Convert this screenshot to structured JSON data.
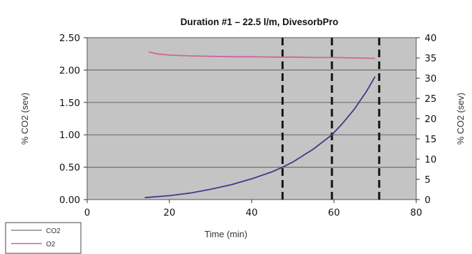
{
  "chart_data": {
    "type": "line",
    "title": "Duration #1 – 22.5 l/m, DivesorbPro",
    "xlabel": "Time (min)",
    "ylabel_left": "% CO2 (sev)",
    "ylabel_right": "% CO2 (sev)",
    "xlim": [
      0,
      80
    ],
    "ylim_left": [
      0,
      2.5
    ],
    "ylim_right": [
      0,
      40
    ],
    "x_ticks": [
      "0",
      "20",
      "40",
      "60",
      "80"
    ],
    "y_ticks_left": [
      "0.00",
      "0.50",
      "1.00",
      "1.50",
      "2.00",
      "2.50"
    ],
    "y_ticks_right": [
      "0",
      "5",
      "10",
      "15",
      "20",
      "25",
      "30",
      "35",
      "40"
    ],
    "grid": true,
    "legend_position": "bottom-left",
    "vertical_markers": [
      47.5,
      59.5,
      71
    ],
    "series": [
      {
        "name": "CO2",
        "axis": "left",
        "color": "#3a3a8c",
        "x": [
          14,
          20,
          25,
          30,
          35,
          40,
          45,
          47.5,
          50,
          55,
          59.5,
          62,
          65,
          68,
          70
        ],
        "y": [
          0.03,
          0.06,
          0.1,
          0.16,
          0.23,
          0.32,
          0.43,
          0.5,
          0.58,
          0.78,
          1.0,
          1.17,
          1.4,
          1.68,
          1.9
        ]
      },
      {
        "name": "O2",
        "axis": "right",
        "color": "#cc6699",
        "x": [
          15,
          17,
          20,
          25,
          30,
          35,
          40,
          45,
          50,
          55,
          60,
          65,
          70
        ],
        "y": [
          36.5,
          36.0,
          35.7,
          35.5,
          35.4,
          35.3,
          35.3,
          35.2,
          35.2,
          35.1,
          35.1,
          35.0,
          34.9
        ]
      }
    ]
  },
  "colors": {
    "plot_bg": "#c4c4c4",
    "grid": "#6e6e6e",
    "marker": "#111111"
  }
}
